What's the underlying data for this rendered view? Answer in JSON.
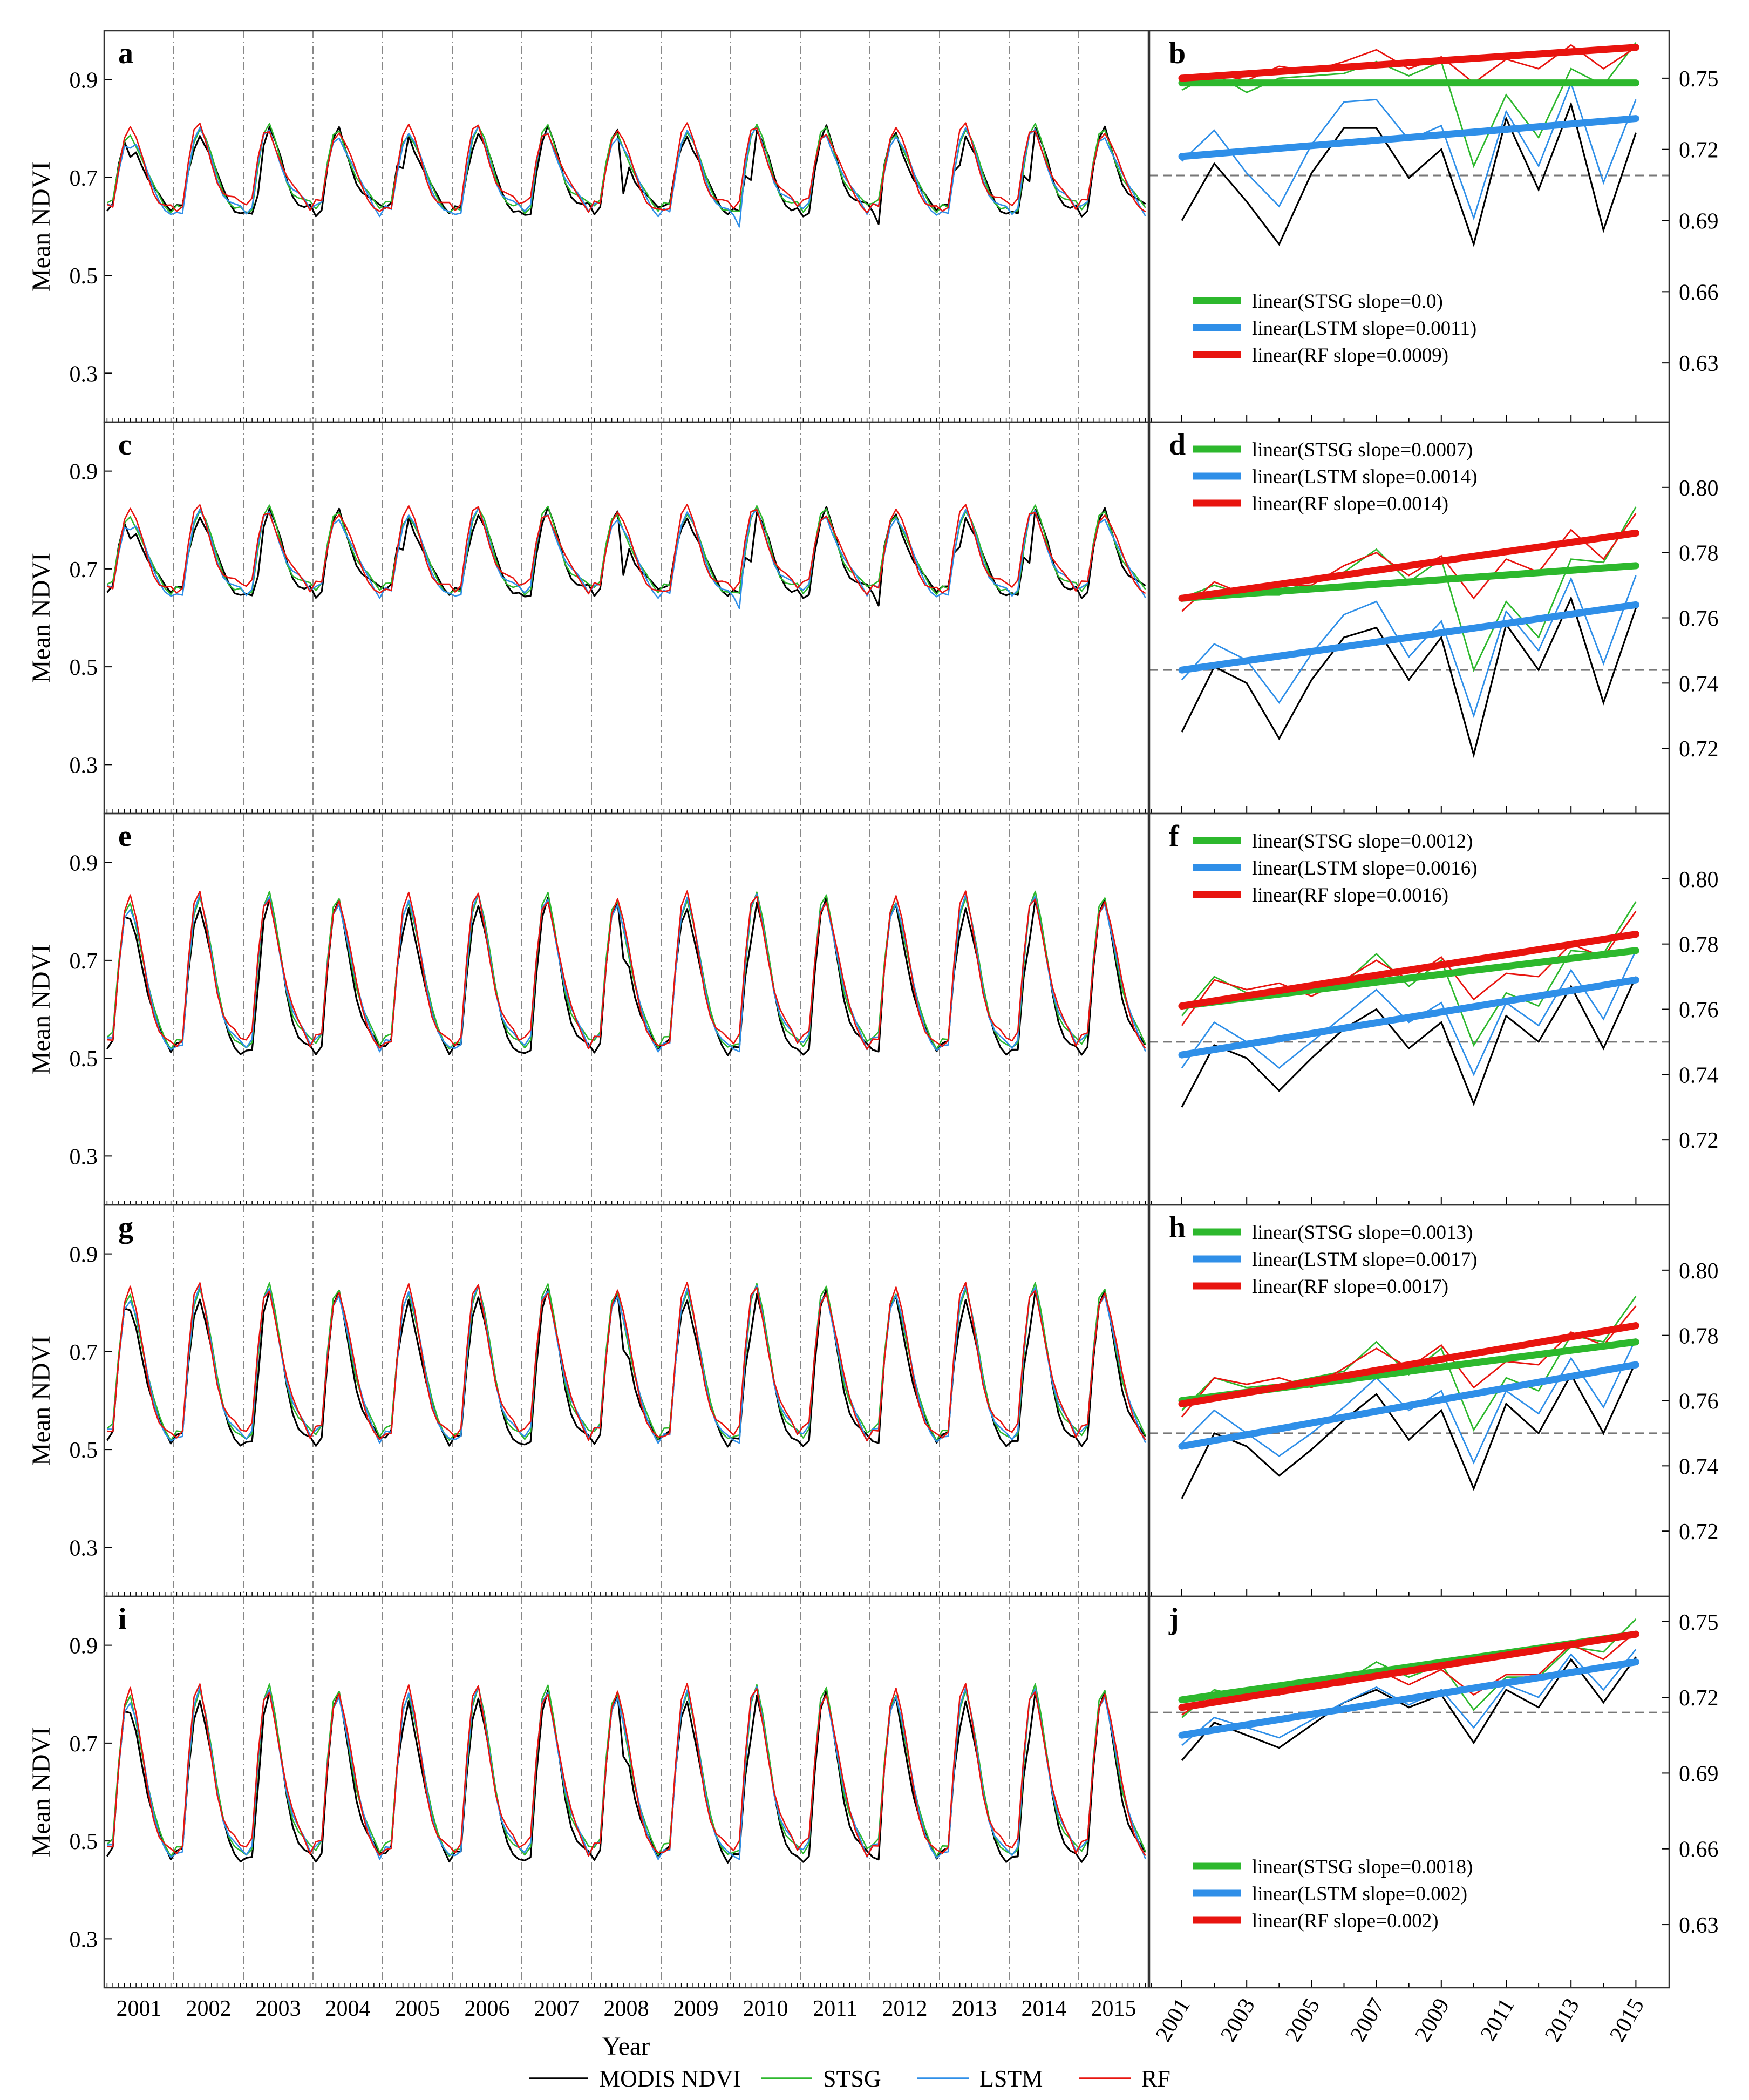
{
  "figure": {
    "shared_y_label": "Mean NDVI",
    "shared_x_label": "Year",
    "years": [
      "2001",
      "2002",
      "2003",
      "2004",
      "2005",
      "2006",
      "2007",
      "2008",
      "2009",
      "2010",
      "2011",
      "2012",
      "2013",
      "2014",
      "2015"
    ],
    "annual_ticks": [
      "2001",
      "2003",
      "2005",
      "2007",
      "2009",
      "2011",
      "2013",
      "2015"
    ],
    "left_y_ticks": [
      "0.3",
      "0.5",
      "0.7",
      "0.9"
    ],
    "legend": [
      {
        "name": "MODIS NDVI",
        "color": "#000000"
      },
      {
        "name": "STSG",
        "color": "#2db82d"
      },
      {
        "name": "LSTM",
        "color": "#2f8fe8"
      },
      {
        "name": "RF",
        "color": "#e8140f"
      }
    ]
  },
  "chart_data": [
    {
      "panel": "a",
      "type": "line",
      "ylabel": "Mean NDVI",
      "xlabel": "",
      "ylim": [
        0.2,
        1.0
      ],
      "season": {
        "min": 0.64,
        "peak": 0.8
      }
    },
    {
      "panel": "b",
      "type": "line",
      "ylim": [
        0.605,
        0.77
      ],
      "yticks": [
        "0.63",
        "0.66",
        "0.69",
        "0.72",
        "0.75"
      ],
      "mean_line": 0.709,
      "legend_position": "lower-left",
      "x": [
        2001,
        2002,
        2003,
        2004,
        2005,
        2006,
        2007,
        2008,
        2009,
        2010,
        2011,
        2012,
        2013,
        2014,
        2015
      ],
      "series": [
        {
          "name": "MODIS NDVI",
          "values": [
            0.69,
            0.714,
            0.698,
            0.68,
            0.71,
            0.729,
            0.729,
            0.708,
            0.72,
            0.68,
            0.733,
            0.703,
            0.739,
            0.686,
            0.727
          ]
        },
        {
          "name": "STSG",
          "values": [
            0.745,
            0.752,
            0.744,
            0.75,
            0.751,
            0.752,
            0.757,
            0.751,
            0.757,
            0.713,
            0.743,
            0.725,
            0.754,
            0.747,
            0.765
          ]
        },
        {
          "name": "LSTM",
          "values": [
            0.715,
            0.728,
            0.71,
            0.696,
            0.722,
            0.74,
            0.741,
            0.724,
            0.73,
            0.691,
            0.736,
            0.713,
            0.748,
            0.706,
            0.741
          ]
        },
        {
          "name": "RF",
          "values": [
            0.748,
            0.752,
            0.749,
            0.755,
            0.753,
            0.757,
            0.762,
            0.754,
            0.759,
            0.748,
            0.758,
            0.754,
            0.764,
            0.754,
            0.763
          ]
        }
      ],
      "trends": [
        {
          "label": "linear(STSG slope=0.0)",
          "start": 0.748,
          "end": 0.748
        },
        {
          "label": "linear(LSTM slope=0.0011)",
          "start": 0.717,
          "end": 0.733
        },
        {
          "label": "linear(RF slope=0.0009)",
          "start": 0.75,
          "end": 0.763
        }
      ]
    },
    {
      "panel": "c",
      "type": "line",
      "ylabel": "Mean NDVI",
      "xlabel": "",
      "ylim": [
        0.2,
        1.0
      ],
      "season": {
        "min": 0.66,
        "peak": 0.82
      }
    },
    {
      "panel": "d",
      "type": "line",
      "ylim": [
        0.7,
        0.82
      ],
      "yticks": [
        "0.72",
        "0.74",
        "0.76",
        "0.78",
        "0.80"
      ],
      "mean_line": 0.744,
      "legend_position": "top-left",
      "x": [
        2001,
        2002,
        2003,
        2004,
        2005,
        2006,
        2007,
        2008,
        2009,
        2010,
        2011,
        2012,
        2013,
        2014,
        2015
      ],
      "series": [
        {
          "name": "MODIS NDVI",
          "values": [
            0.725,
            0.745,
            0.74,
            0.723,
            0.741,
            0.754,
            0.757,
            0.741,
            0.754,
            0.718,
            0.758,
            0.744,
            0.766,
            0.734,
            0.763
          ]
        },
        {
          "name": "STSG",
          "values": [
            0.766,
            0.77,
            0.767,
            0.767,
            0.772,
            0.774,
            0.781,
            0.771,
            0.778,
            0.744,
            0.765,
            0.754,
            0.778,
            0.777,
            0.794
          ]
        },
        {
          "name": "LSTM",
          "values": [
            0.741,
            0.752,
            0.747,
            0.734,
            0.749,
            0.761,
            0.765,
            0.748,
            0.759,
            0.73,
            0.762,
            0.75,
            0.772,
            0.746,
            0.773
          ]
        },
        {
          "name": "RF",
          "values": [
            0.762,
            0.771,
            0.767,
            0.77,
            0.77,
            0.776,
            0.78,
            0.773,
            0.779,
            0.766,
            0.778,
            0.774,
            0.787,
            0.778,
            0.792
          ]
        }
      ],
      "trends": [
        {
          "label": "linear(STSG slope=0.0007)",
          "start": 0.766,
          "end": 0.776
        },
        {
          "label": "linear(LSTM slope=0.0014)",
          "start": 0.744,
          "end": 0.764
        },
        {
          "label": "linear(RF slope=0.0014)",
          "start": 0.766,
          "end": 0.786
        }
      ]
    },
    {
      "panel": "e",
      "type": "line",
      "ylabel": "Mean NDVI",
      "xlabel": "",
      "ylim": [
        0.2,
        1.0
      ],
      "season": {
        "min": 0.53,
        "peak": 0.83
      }
    },
    {
      "panel": "f",
      "type": "line",
      "ylim": [
        0.7,
        0.82
      ],
      "yticks": [
        "0.72",
        "0.74",
        "0.76",
        "0.78",
        "0.80"
      ],
      "mean_line": 0.75,
      "legend_position": "top-left",
      "x": [
        2001,
        2002,
        2003,
        2004,
        2005,
        2006,
        2007,
        2008,
        2009,
        2010,
        2011,
        2012,
        2013,
        2014,
        2015
      ],
      "series": [
        {
          "name": "MODIS NDVI",
          "values": [
            0.73,
            0.749,
            0.745,
            0.735,
            0.745,
            0.754,
            0.76,
            0.748,
            0.756,
            0.731,
            0.758,
            0.75,
            0.767,
            0.748,
            0.77
          ]
        },
        {
          "name": "STSG",
          "values": [
            0.758,
            0.77,
            0.765,
            0.764,
            0.767,
            0.768,
            0.777,
            0.767,
            0.775,
            0.749,
            0.765,
            0.761,
            0.778,
            0.777,
            0.793
          ]
        },
        {
          "name": "LSTM",
          "values": [
            0.742,
            0.756,
            0.75,
            0.742,
            0.75,
            0.758,
            0.766,
            0.756,
            0.762,
            0.74,
            0.762,
            0.755,
            0.772,
            0.757,
            0.778
          ]
        },
        {
          "name": "RF",
          "values": [
            0.755,
            0.769,
            0.766,
            0.768,
            0.764,
            0.769,
            0.775,
            0.769,
            0.776,
            0.763,
            0.771,
            0.77,
            0.78,
            0.776,
            0.79
          ]
        }
      ],
      "trends": [
        {
          "label": "linear(STSG slope=0.0012)",
          "start": 0.761,
          "end": 0.778
        },
        {
          "label": "linear(LSTM slope=0.0016)",
          "start": 0.746,
          "end": 0.769
        },
        {
          "label": "linear(RF slope=0.0016)",
          "start": 0.761,
          "end": 0.783
        }
      ]
    },
    {
      "panel": "g",
      "type": "line",
      "ylabel": "Mean NDVI",
      "xlabel": "",
      "ylim": [
        0.2,
        1.0
      ],
      "season": {
        "min": 0.53,
        "peak": 0.83
      }
    },
    {
      "panel": "h",
      "type": "line",
      "ylim": [
        0.7,
        0.82
      ],
      "yticks": [
        "0.72",
        "0.74",
        "0.76",
        "0.78",
        "0.80"
      ],
      "mean_line": 0.75,
      "legend_position": "top-left",
      "x": [
        2001,
        2002,
        2003,
        2004,
        2005,
        2006,
        2007,
        2008,
        2009,
        2010,
        2011,
        2012,
        2013,
        2014,
        2015
      ],
      "series": [
        {
          "name": "MODIS NDVI",
          "values": [
            0.73,
            0.75,
            0.746,
            0.737,
            0.745,
            0.754,
            0.762,
            0.748,
            0.757,
            0.733,
            0.759,
            0.75,
            0.768,
            0.75,
            0.772
          ]
        },
        {
          "name": "STSG",
          "values": [
            0.757,
            0.767,
            0.764,
            0.765,
            0.767,
            0.769,
            0.778,
            0.768,
            0.776,
            0.751,
            0.767,
            0.763,
            0.78,
            0.778,
            0.792
          ]
        },
        {
          "name": "LSTM",
          "values": [
            0.747,
            0.757,
            0.75,
            0.743,
            0.75,
            0.758,
            0.767,
            0.757,
            0.763,
            0.741,
            0.763,
            0.756,
            0.773,
            0.758,
            0.779
          ]
        },
        {
          "name": "RF",
          "values": [
            0.755,
            0.767,
            0.765,
            0.767,
            0.764,
            0.77,
            0.776,
            0.77,
            0.777,
            0.764,
            0.772,
            0.771,
            0.781,
            0.777,
            0.789
          ]
        }
      ],
      "trends": [
        {
          "label": "linear(STSG slope=0.0013)",
          "start": 0.76,
          "end": 0.778
        },
        {
          "label": "linear(LSTM slope=0.0017)",
          "start": 0.746,
          "end": 0.771
        },
        {
          "label": "linear(RF slope=0.0017)",
          "start": 0.759,
          "end": 0.783
        }
      ]
    },
    {
      "panel": "i",
      "type": "line",
      "ylabel": "Mean NDVI",
      "xlabel": "Year",
      "ylim": [
        0.2,
        1.0
      ],
      "season": {
        "min": 0.48,
        "peak": 0.81
      }
    },
    {
      "panel": "j",
      "type": "line",
      "ylim": [
        0.605,
        0.76
      ],
      "yticks": [
        "0.63",
        "0.66",
        "0.69",
        "0.72",
        "0.75"
      ],
      "mean_line": 0.714,
      "legend_position": "lower-left",
      "x": [
        2001,
        2002,
        2003,
        2004,
        2005,
        2006,
        2007,
        2008,
        2009,
        2010,
        2011,
        2012,
        2013,
        2014,
        2015
      ],
      "series": [
        {
          "name": "MODIS NDVI",
          "values": [
            0.695,
            0.71,
            0.705,
            0.7,
            0.709,
            0.718,
            0.723,
            0.716,
            0.721,
            0.702,
            0.723,
            0.716,
            0.735,
            0.718,
            0.736
          ]
        },
        {
          "name": "STSG",
          "values": [
            0.712,
            0.723,
            0.72,
            0.721,
            0.726,
            0.726,
            0.734,
            0.728,
            0.733,
            0.715,
            0.728,
            0.728,
            0.74,
            0.738,
            0.751
          ]
        },
        {
          "name": "LSTM",
          "values": [
            0.701,
            0.712,
            0.708,
            0.704,
            0.711,
            0.718,
            0.724,
            0.717,
            0.723,
            0.708,
            0.725,
            0.72,
            0.737,
            0.723,
            0.739
          ]
        },
        {
          "name": "RF",
          "values": [
            0.713,
            0.722,
            0.723,
            0.721,
            0.724,
            0.725,
            0.731,
            0.725,
            0.731,
            0.721,
            0.729,
            0.729,
            0.741,
            0.735,
            0.746
          ]
        }
      ],
      "trends": [
        {
          "label": "linear(STSG slope=0.0018)",
          "start": 0.719,
          "end": 0.745
        },
        {
          "label": "linear(LSTM slope=0.002)",
          "start": 0.705,
          "end": 0.734
        },
        {
          "label": "linear(RF slope=0.002)",
          "start": 0.716,
          "end": 0.745
        }
      ]
    }
  ]
}
